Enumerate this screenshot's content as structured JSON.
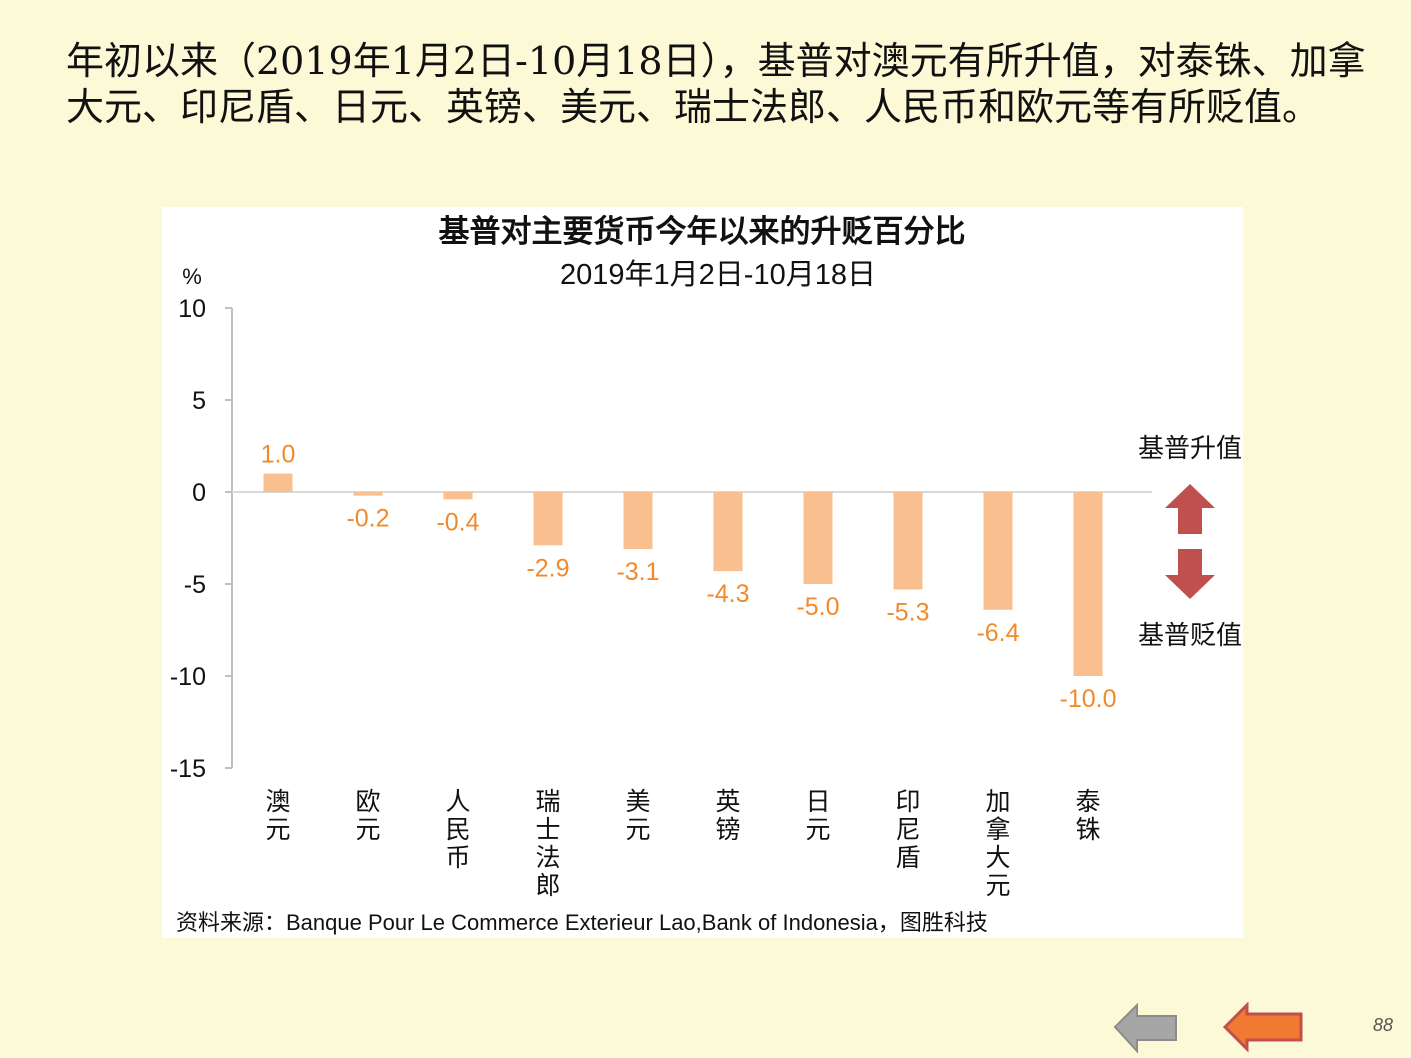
{
  "intro_text": "年初以来（2019年1月2日-10月18日），基普对澳元有所升值，对泰铢、加拿大元、印尼盾、日元、英镑、美元、瑞士法郎、人民币和欧元等有所贬值。",
  "chart_data": {
    "type": "bar",
    "title": "基普对主要货币今年以来的升贬百分比",
    "subtitle": "2019年1月2日-10月18日",
    "ylabel": "%",
    "xlabel": "",
    "categories": [
      "澳元",
      "欧元",
      "人民币",
      "瑞士法郎",
      "美元",
      "英镑",
      "日元",
      "印尼盾",
      "加拿大元",
      "泰铢"
    ],
    "values": [
      1.0,
      -0.2,
      -0.4,
      -2.9,
      -3.1,
      -4.3,
      -5.0,
      -5.3,
      -6.4,
      -10.0
    ],
    "value_labels": [
      "1.0",
      "-0.2",
      "-0.4",
      "-2.9",
      "-3.1",
      "-4.3",
      "-5.0",
      "-5.3",
      "-6.4",
      "-10.0"
    ],
    "ylim": [
      -15,
      10
    ],
    "yticks": [
      10,
      5,
      0,
      -5,
      -10,
      -15
    ],
    "grid": false,
    "legend": false,
    "bar_color": "#F9BF8F",
    "label_color": "#F08A2E",
    "annotations": {
      "up_label": "基普升值",
      "down_label": "基普贬值",
      "arrow_color": "#C0504D"
    },
    "source": "资料来源：Banque Pour Le Commerce Exterieur Lao,Bank of Indonesia，图胜科技"
  },
  "nav": {
    "back_color": "#A6A6A6",
    "forward_color": "#F07A32"
  },
  "page_number": "88"
}
